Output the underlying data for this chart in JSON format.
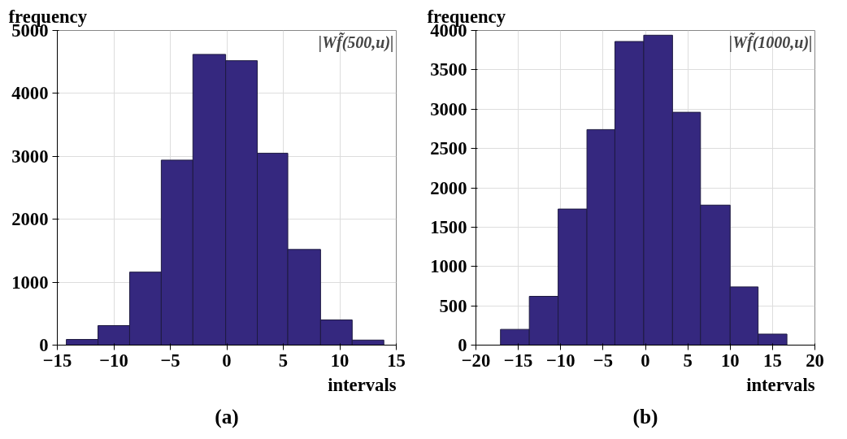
{
  "chart_data": [
    {
      "type": "histogram",
      "title": "(a)",
      "xlabel": "intervals",
      "ylabel": "frequency",
      "annotations": [
        "|Wf̃(500,u)|"
      ],
      "bins": [
        -14.2,
        -11.4,
        -8.6,
        -5.8,
        -3.0,
        -0.1,
        2.7,
        5.4,
        8.3,
        11.1,
        13.9
      ],
      "values": [
        90,
        310,
        1160,
        2940,
        4620,
        4520,
        3050,
        1520,
        400,
        80
      ],
      "color": "#35287f",
      "xlim": [
        -15,
        15
      ],
      "ylim": [
        0,
        5000
      ],
      "xticks": [
        -15,
        -10,
        -5,
        0,
        5,
        10,
        15
      ],
      "yticks": [
        0,
        1000,
        2000,
        3000,
        4000,
        5000
      ],
      "grid": true
    },
    {
      "type": "histogram",
      "title": "(b)",
      "xlabel": "intervals",
      "ylabel": "frequency",
      "annotations": [
        "|Wf̃(1000,u)|"
      ],
      "bins": [
        -17.1,
        -13.7,
        -10.3,
        -6.9,
        -3.6,
        -0.2,
        3.2,
        6.5,
        10.0,
        13.3,
        16.7
      ],
      "values": [
        200,
        620,
        1730,
        2740,
        3860,
        3940,
        2960,
        1780,
        740,
        140
      ],
      "color": "#35287f",
      "xlim": [
        -20,
        20
      ],
      "ylim": [
        0,
        4000
      ],
      "xticks": [
        -20,
        -15,
        -10,
        -5,
        0,
        5,
        10,
        15,
        20
      ],
      "yticks": [
        0,
        500,
        1000,
        1500,
        2000,
        2500,
        3000,
        3500,
        4000
      ],
      "grid": true
    }
  ]
}
